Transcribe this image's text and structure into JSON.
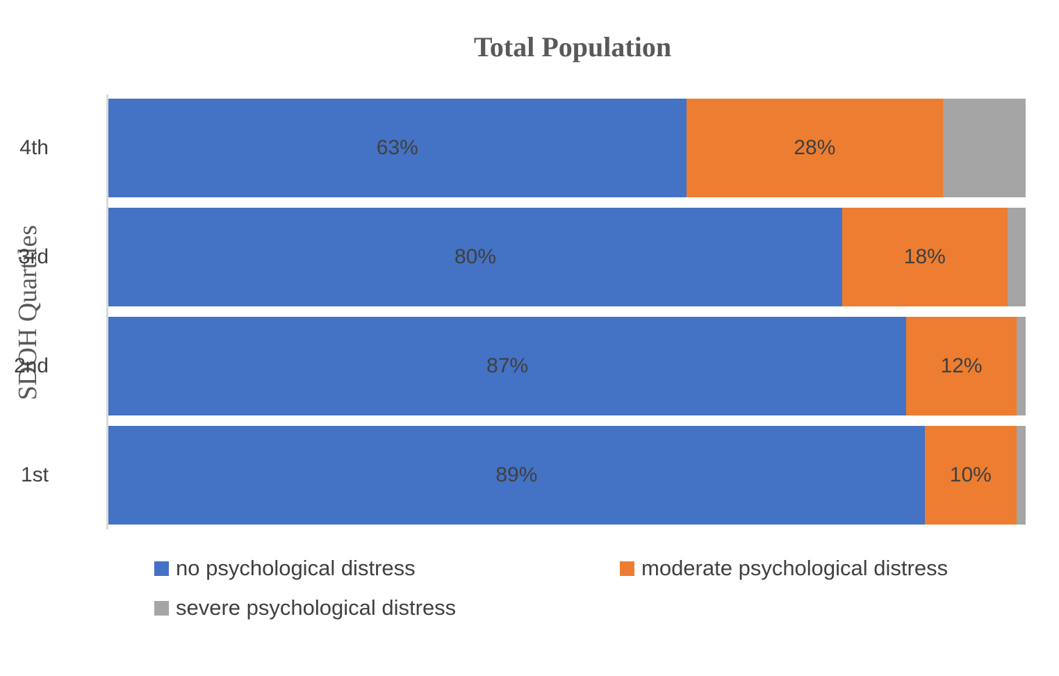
{
  "chart_data": {
    "type": "bar",
    "orientation": "horizontal",
    "stacked": "percent",
    "title": "Total Population",
    "xlabel": "",
    "ylabel": "SDOH Quartiles",
    "categories": [
      "4th",
      "3rd",
      "2nd",
      "1st"
    ],
    "series": [
      {
        "name": "no psychological distress",
        "color": "#4472C4",
        "values": [
          63,
          80,
          87,
          89
        ],
        "labels": [
          "63%",
          "80%",
          "87%",
          "89%"
        ]
      },
      {
        "name": "moderate psychological distress",
        "color": "#ED7D31",
        "values": [
          28,
          18,
          12,
          10
        ],
        "labels": [
          "28%",
          "18%",
          "12%",
          "10%"
        ]
      },
      {
        "name": "severe psychological distress",
        "color": "#A5A5A5",
        "values": [
          9,
          2,
          1,
          1
        ],
        "labels": [
          "",
          "",
          "",
          ""
        ]
      }
    ],
    "xlim": [
      0,
      100
    ],
    "grid": false,
    "legend_position": "bottom"
  },
  "legend": [
    {
      "label": "no psychological distress",
      "color": "#4472C4"
    },
    {
      "label": "moderate psychological distress",
      "color": "#ED7D31"
    },
    {
      "label": "severe psychological distress",
      "color": "#A5A5A5"
    }
  ]
}
